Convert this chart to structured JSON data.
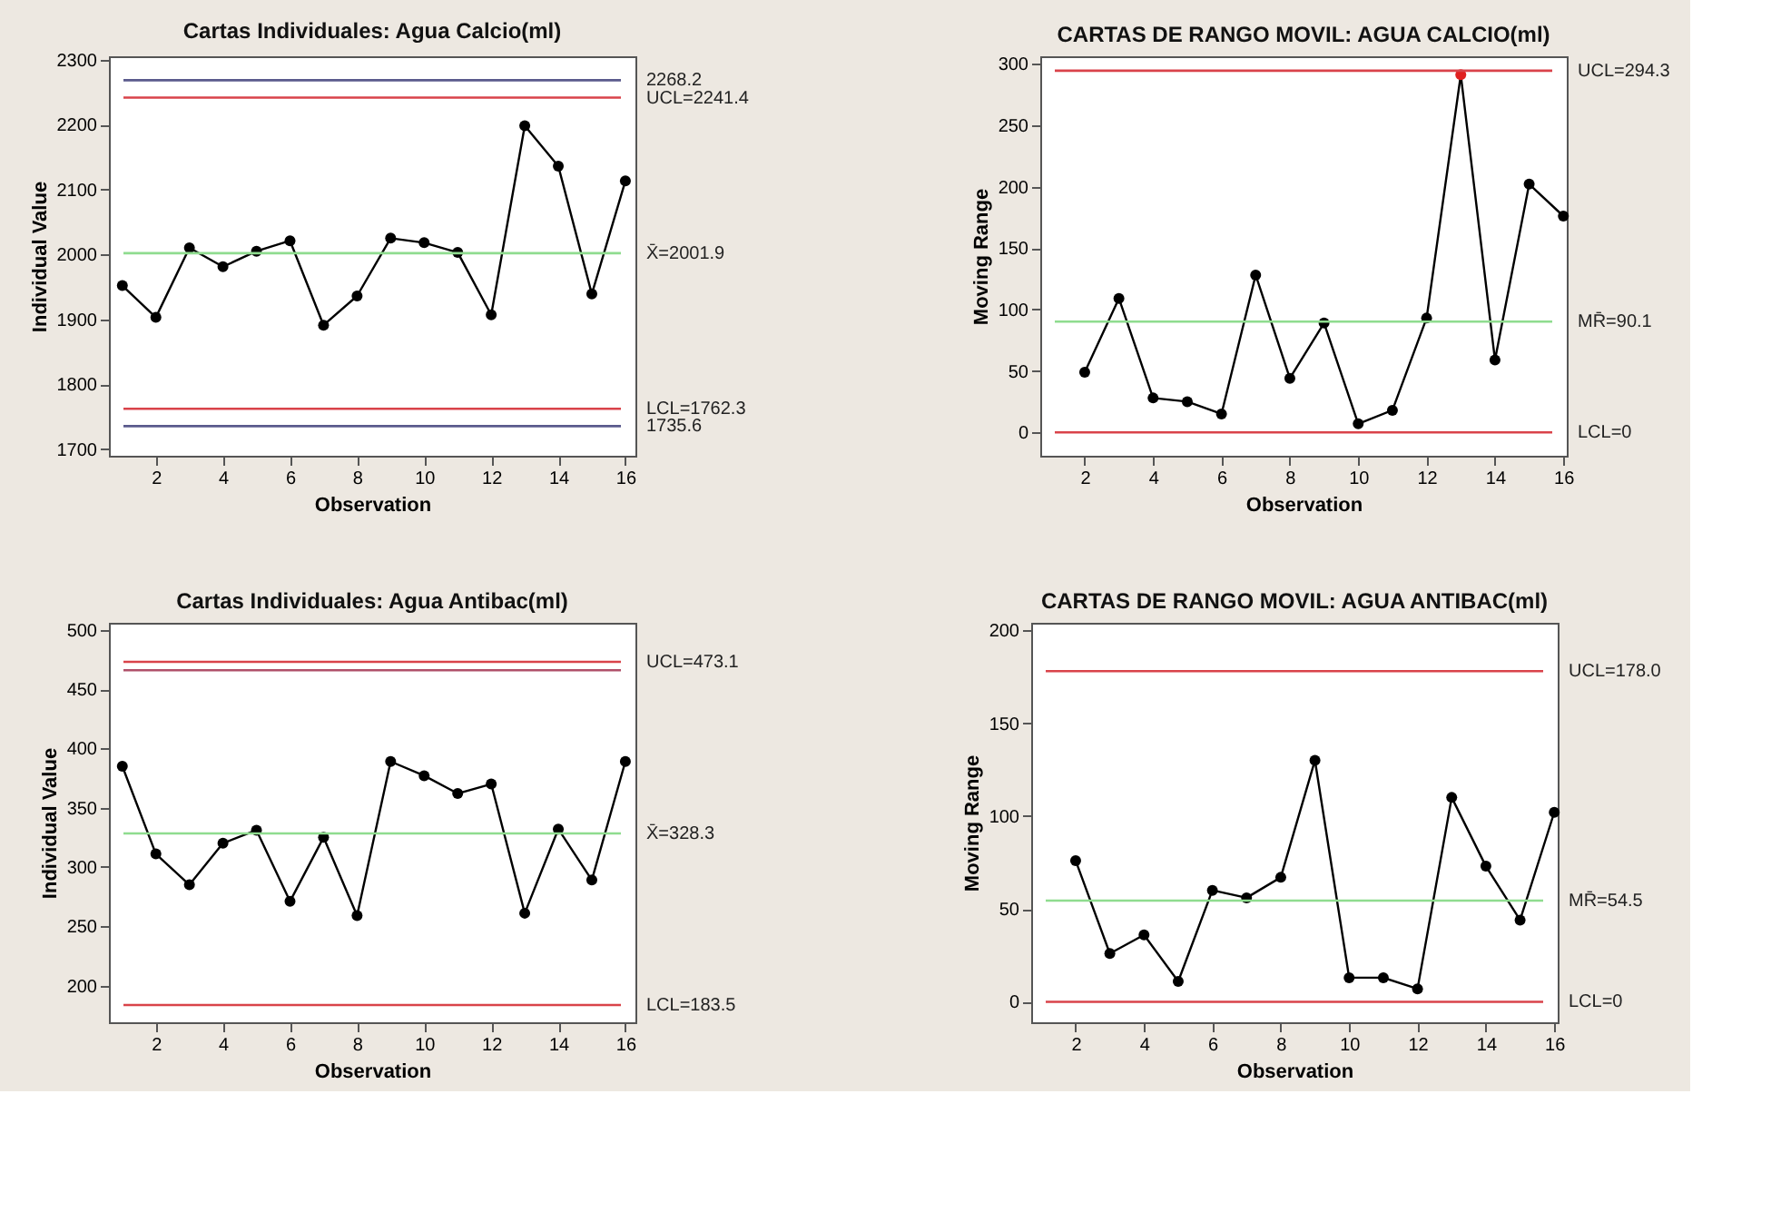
{
  "chart_data": [
    {
      "type": "line",
      "title": "Cartas Individuales: Agua Calcio(ml)",
      "xlabel": "Observation",
      "ylabel": "Individual Value",
      "x": [
        1,
        2,
        3,
        4,
        5,
        6,
        7,
        8,
        9,
        10,
        11,
        12,
        13,
        14,
        15,
        16
      ],
      "xlim": [
        0.6,
        16.3
      ],
      "xticks": [
        2,
        4,
        6,
        8,
        10,
        12,
        14,
        16
      ],
      "ylim": [
        1690,
        2305
      ],
      "yticks": [
        1700,
        1800,
        1900,
        2000,
        2100,
        2200,
        2300
      ],
      "grid": false,
      "marker": "circle",
      "line_style": "solid",
      "series": [
        {
          "color": "#000000",
          "values": [
            1952,
            1903,
            2010,
            1981,
            2005,
            2021,
            1891,
            1936,
            2025,
            2018,
            2003,
            1907,
            2198,
            2136,
            1939,
            2113
          ]
        }
      ],
      "ref_lines": [
        {
          "axis": "y",
          "value": 2268.2,
          "label": "2268.2",
          "color": "#5a5a8c"
        },
        {
          "axis": "y",
          "value": 2241.4,
          "label": "UCL=2241.4",
          "color": "#d9434a"
        },
        {
          "axis": "y",
          "value": 2001.9,
          "label": "X̄=2001.9",
          "color": "#8fdc8f"
        },
        {
          "axis": "y",
          "value": 1762.3,
          "label": "LCL=1762.3",
          "color": "#d9434a"
        },
        {
          "axis": "y",
          "value": 1735.6,
          "label": "1735.6",
          "color": "#5a5a8c"
        }
      ]
    },
    {
      "type": "line",
      "title": "CARTAS DE RANGO MOVIL: AGUA CALCIO(ml)",
      "xlabel": "Observation",
      "ylabel": "Moving Range",
      "x": [
        2,
        3,
        4,
        5,
        6,
        7,
        8,
        9,
        10,
        11,
        12,
        13,
        14,
        15,
        16
      ],
      "xlim": [
        0.7,
        16.1
      ],
      "xticks": [
        2,
        4,
        6,
        8,
        10,
        12,
        14,
        16
      ],
      "ylim": [
        -19,
        306
      ],
      "yticks": [
        0,
        50,
        100,
        150,
        200,
        250,
        300
      ],
      "grid": false,
      "marker": "circle",
      "line_style": "solid",
      "series": [
        {
          "color": "#000000",
          "colors": [
            "#000000",
            "#000000",
            "#000000",
            "#000000",
            "#000000",
            "#000000",
            "#000000",
            "#000000",
            "#000000",
            "#000000",
            "#000000",
            "#e02020",
            "#000000",
            "#000000",
            "#000000"
          ],
          "values": [
            49,
            109,
            28,
            25,
            15,
            128,
            44,
            89,
            7,
            18,
            93,
            291,
            59,
            202,
            176
          ]
        }
      ],
      "ref_lines": [
        {
          "axis": "y",
          "value": 294.3,
          "label": "UCL=294.3",
          "color": "#d9434a"
        },
        {
          "axis": "y",
          "value": 90.1,
          "label": "MR̄=90.1",
          "color": "#8fdc8f"
        },
        {
          "axis": "y",
          "value": 0,
          "label": "LCL=0",
          "color": "#d9434a"
        }
      ]
    },
    {
      "type": "line",
      "title": "Cartas Individuales: Agua Antibac(ml)",
      "xlabel": "Observation",
      "ylabel": "Individual Value",
      "x": [
        1,
        2,
        3,
        4,
        5,
        6,
        7,
        8,
        9,
        10,
        11,
        12,
        13,
        14,
        15,
        16
      ],
      "xlim": [
        0.6,
        16.3
      ],
      "xticks": [
        2,
        4,
        6,
        8,
        10,
        12,
        14,
        16
      ],
      "ylim": [
        169,
        506
      ],
      "yticks": [
        200,
        250,
        300,
        350,
        400,
        450,
        500
      ],
      "grid": false,
      "marker": "circle",
      "line_style": "solid",
      "series": [
        {
          "color": "#000000",
          "values": [
            385,
            311,
            285,
            320,
            331,
            271,
            325,
            259,
            389,
            377,
            362,
            370,
            261,
            332,
            289,
            389
          ]
        }
      ],
      "ref_lines": [
        {
          "axis": "y",
          "value": 473.1,
          "label": "UCL=473.1",
          "color": "#d9434a"
        },
        {
          "axis": "y",
          "value": 466,
          "label": null,
          "color": "#b0506a"
        },
        {
          "axis": "y",
          "value": 328.3,
          "label": "X̄=328.3",
          "color": "#8fdc8f"
        },
        {
          "axis": "y",
          "value": 183.5,
          "label": "LCL=183.5",
          "color": "#d9434a"
        }
      ]
    },
    {
      "type": "line",
      "title": "CARTAS DE RANGO MOVIL: AGUA ANTIBAC(ml)",
      "xlabel": "Observation",
      "ylabel": "Moving Range",
      "x": [
        2,
        3,
        4,
        5,
        6,
        7,
        8,
        9,
        10,
        11,
        12,
        13,
        14,
        15,
        16
      ],
      "xlim": [
        0.7,
        16.1
      ],
      "xticks": [
        2,
        4,
        6,
        8,
        10,
        12,
        14,
        16
      ],
      "ylim": [
        -11,
        204
      ],
      "yticks": [
        0,
        50,
        100,
        150,
        200
      ],
      "grid": false,
      "marker": "circle",
      "line_style": "solid",
      "series": [
        {
          "color": "#000000",
          "values": [
            76,
            26,
            36,
            11,
            60,
            56,
            67,
            130,
            13,
            13,
            7,
            110,
            73,
            44,
            102
          ]
        }
      ],
      "ref_lines": [
        {
          "axis": "y",
          "value": 178.0,
          "label": "UCL=178.0",
          "color": "#d9434a"
        },
        {
          "axis": "y",
          "value": 54.5,
          "label": "MR̄=54.5",
          "color": "#8fdc8f"
        },
        {
          "axis": "y",
          "value": 0,
          "label": "LCL=0",
          "color": "#d9434a"
        }
      ]
    }
  ]
}
